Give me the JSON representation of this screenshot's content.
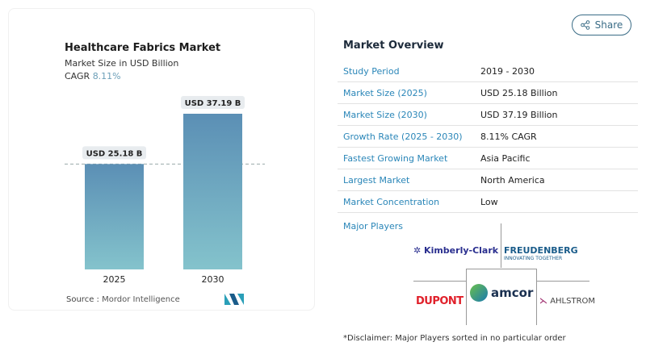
{
  "chart_data": {
    "type": "bar",
    "title": "Healthcare Fabrics Market",
    "subtitle": "Market Size in USD Billion",
    "cagr_label": "CAGR",
    "cagr_value": "8.11%",
    "categories": [
      "2025",
      "2030"
    ],
    "values": [
      25.18,
      37.19
    ],
    "data_labels": [
      "USD 25.18 B",
      "USD 37.19 B"
    ],
    "ylim": [
      0,
      37.19
    ],
    "grid": false,
    "reference_line": "dashed at 2025 value",
    "colors": {
      "bar_top": "#5b8fb5",
      "bar_bottom": "#84c3cc",
      "cagr": "#6c9fb8"
    }
  },
  "source": {
    "label": "Source :",
    "value": "Mordor Intelligence"
  },
  "share": {
    "label": "Share",
    "icon": "share-icon"
  },
  "overview": {
    "title": "Market Overview",
    "rows": [
      {
        "label": "Study Period",
        "value": "2019 - 2030"
      },
      {
        "label": "Market Size (2025)",
        "value": "USD 25.18 Billion"
      },
      {
        "label": "Market Size (2030)",
        "value": "USD 37.19 Billion"
      },
      {
        "label": "Growth Rate (2025 - 2030)",
        "value": "8.11% CAGR"
      },
      {
        "label": "Fastest Growing Market",
        "value": "Asia Pacific"
      },
      {
        "label": "Largest Market",
        "value": "North America"
      },
      {
        "label": "Market Concentration",
        "value": "Low"
      }
    ]
  },
  "players": {
    "title": "Major Players",
    "logos": [
      "Kimberly-Clark",
      "FREUDENBERG",
      "INNOVATING TOGETHER",
      "DUPONT",
      "amcor",
      "AHLSTROM"
    ]
  },
  "disclaimer": "*Disclaimer: Major Players sorted in no particular order"
}
